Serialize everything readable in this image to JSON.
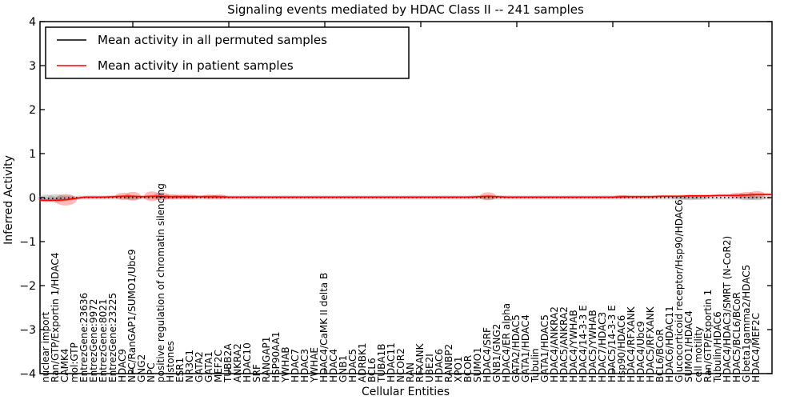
{
  "figure": {
    "background": "#ffffff",
    "frame_color": "#000000"
  },
  "chart_data": {
    "type": "line",
    "title": "Signaling events mediated by HDAC Class II -- 241 samples",
    "xlabel": "Cellular Entities",
    "ylabel": "Inferred Activity",
    "ylim": [
      -4,
      4
    ],
    "yticks": [
      4,
      3,
      2,
      1,
      0,
      -1,
      -2,
      -3,
      -4
    ],
    "grid": false,
    "legend_position": "upper left",
    "categories": [
      "nuclear import",
      "Ran/GTP/Exportin 1/HDAC4",
      "CAMK4",
      "mol:GTP",
      "EntrezGene:23636",
      "EntrezGene:9972",
      "EntrezGene:8021",
      "EntrezGene:23225",
      "HDAC9",
      "NPC/RanGAP1/SUMO1/Ubc9",
      "GNG2",
      "NPC",
      "positive regulation of chromatin silencing",
      "Histones",
      "ESR1",
      "NR3C1",
      "GATA2",
      "GATA1",
      "MEF2C",
      "TUBB2A",
      "ANKRA2",
      "HDAC10",
      "SRF",
      "RANGAP1",
      "HSP90AA1",
      "YWHAB",
      "HDAC7",
      "HDAC3",
      "YWHAE",
      "HDAC4/CaMK II delta B",
      "HDAC4",
      "GNB1",
      "HDAC5",
      "ADRBK1",
      "BCL6",
      "TUBA1B",
      "HDAC11",
      "NCOR2",
      "RAN",
      "RFXANK",
      "UBE2I",
      "HDAC6",
      "RANBP2",
      "XPO1",
      "BCOR",
      "SUMO1",
      "HDAC4/SRF",
      "GNB1/GNG2",
      "HDAC4/ER alpha",
      "GATA2/HDAC5",
      "GATA1/HDAC4",
      "Tubulin",
      "GATA1/HDAC5",
      "HDAC4/ANKRA2",
      "HDAC5/ANKRA2",
      "HDAC4/YWHAB",
      "HDAC4/14-3-3 E",
      "HDAC5/YWHAB",
      "HDAC7/HDAC3",
      "HDAC5/14-3-3 E",
      "Hsp90/HDAC6",
      "HDAC4/RFXANK",
      "HDAC4/Ubc9",
      "HDAC5/RFXANK",
      "BCL6/BCoR",
      "HDAC6/HDAC11",
      "Glucocorticoid receptor/Hsp90/HDAC6",
      "SUMO1/HDAC4",
      "cell motility",
      "Ran/GTP/Exportin 1",
      "Tubulin/HDAC6",
      "HDAC4/HDAC3/SMRT (N-CoR2)",
      "HDAC5/BCL6/BCoR",
      "G beta1gamma2/HDAC5",
      "HDAC4/MEF2C"
    ],
    "series": [
      {
        "name": "Mean activity in all permuted samples",
        "key": "permuted",
        "color": "#000000",
        "style": "dotted",
        "values": [
          -0.02,
          -0.02,
          -0.01,
          0,
          0,
          0,
          0,
          0,
          0,
          0,
          0,
          0,
          0,
          0,
          0,
          0,
          0,
          0,
          0,
          0,
          0,
          0,
          0,
          0,
          0,
          0,
          0,
          0,
          0,
          0,
          0,
          0,
          0,
          0,
          0,
          0,
          0,
          0,
          0,
          0,
          0,
          0,
          0,
          0,
          0,
          0,
          0,
          0,
          0,
          0,
          0,
          0,
          0,
          0,
          0,
          0,
          0,
          0,
          0,
          0,
          0,
          0,
          0,
          0,
          0,
          0,
          0,
          0,
          0,
          0,
          0,
          0,
          0,
          0,
          0
        ]
      },
      {
        "name": "Mean activity in patient samples",
        "key": "patient",
        "color": "#ff0000",
        "style": "solid",
        "values": [
          -0.06,
          -0.06,
          -0.05,
          -0.02,
          0.01,
          0.01,
          0.01,
          0.02,
          0.03,
          0.03,
          0.02,
          0.03,
          0.03,
          0.02,
          0.02,
          0.02,
          0.02,
          0.02,
          0.02,
          0.01,
          0.01,
          0.01,
          0.01,
          0.01,
          0.01,
          0.01,
          0.01,
          0.01,
          0.01,
          0.01,
          0.01,
          0.01,
          0.01,
          0.01,
          0.01,
          0.01,
          0.01,
          0.01,
          0.01,
          0.01,
          0.01,
          0.01,
          0.01,
          0.01,
          0.01,
          0.02,
          0.03,
          0.02,
          0.01,
          0.01,
          0.01,
          0.01,
          0.01,
          0.01,
          0.01,
          0.01,
          0.01,
          0.01,
          0.01,
          0.01,
          0.02,
          0.02,
          0.02,
          0.02,
          0.03,
          0.03,
          0.03,
          0.04,
          0.04,
          0.04,
          0.05,
          0.05,
          0.05,
          0.06,
          0.07
        ]
      }
    ],
    "band_half_height": {
      "permuted": 0.045,
      "patient": 0.032
    },
    "spread_blobs": [
      {
        "series": "patient",
        "index": 2,
        "half_height": 0.13
      },
      {
        "series": "patient",
        "index": 8,
        "half_height": 0.08
      },
      {
        "series": "patient",
        "index": 9,
        "half_height": 0.1
      },
      {
        "series": "patient",
        "index": 11,
        "half_height": 0.11
      },
      {
        "series": "patient",
        "index": 12,
        "half_height": 0.09
      },
      {
        "series": "patient",
        "index": 13,
        "half_height": 0.06
      },
      {
        "series": "patient",
        "index": 14,
        "half_height": 0.05
      },
      {
        "series": "patient",
        "index": 15,
        "half_height": 0.05
      },
      {
        "series": "patient",
        "index": 17,
        "half_height": 0.05
      },
      {
        "series": "patient",
        "index": 18,
        "half_height": 0.05
      },
      {
        "series": "patient",
        "index": 46,
        "half_height": 0.09
      },
      {
        "series": "patient",
        "index": 60,
        "half_height": 0.03
      },
      {
        "series": "patient",
        "index": 72,
        "half_height": 0.06
      },
      {
        "series": "patient",
        "index": 73,
        "half_height": 0.07
      },
      {
        "series": "patient",
        "index": 74,
        "half_height": 0.08
      },
      {
        "series": "permuted",
        "index": 0,
        "half_height": 0.09
      },
      {
        "series": "permuted",
        "index": 1,
        "half_height": 0.1
      },
      {
        "series": "permuted",
        "index": 2,
        "half_height": 0.07
      },
      {
        "series": "permuted",
        "index": 9,
        "half_height": 0.05
      },
      {
        "series": "permuted",
        "index": 46,
        "half_height": 0.05
      },
      {
        "series": "permuted",
        "index": 66,
        "half_height": 0.05
      },
      {
        "series": "permuted",
        "index": 67,
        "half_height": 0.06
      },
      {
        "series": "permuted",
        "index": 68,
        "half_height": 0.05
      },
      {
        "series": "permuted",
        "index": 73,
        "half_height": 0.06
      },
      {
        "series": "permuted",
        "index": 74,
        "half_height": 0.06
      }
    ]
  }
}
